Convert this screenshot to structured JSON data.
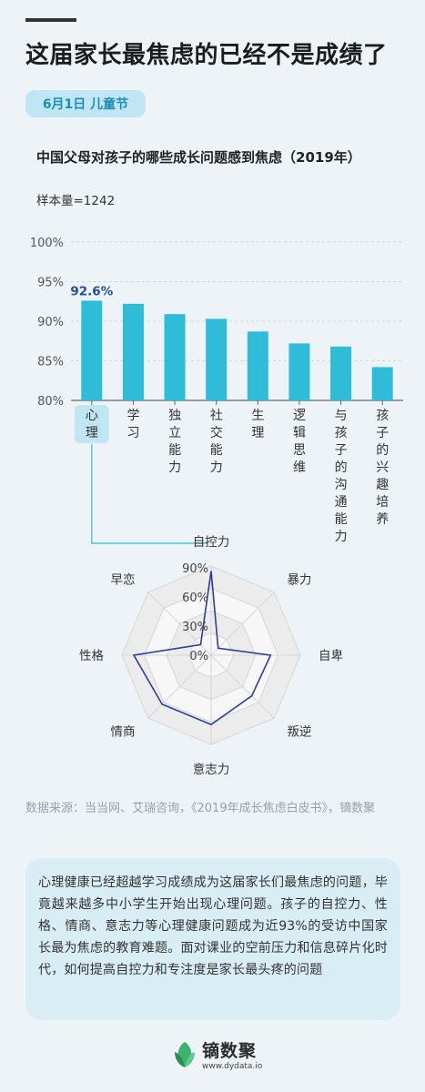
{
  "header": {
    "title": "这届家长最焦虑的已经不是成绩了",
    "date_badge": "6月1日 儿童节"
  },
  "chart_data": [
    {
      "type": "bar",
      "title": "中国父母对孩子的哪些成长问题感到焦虑（2019年）",
      "sample": "样本量=1242",
      "categories": [
        "心理",
        "学习",
        "独立能力",
        "社交能力",
        "生理",
        "逻辑思维",
        "与孩子的沟通能力",
        "孩子的兴趣培养"
      ],
      "values": [
        92.6,
        92.2,
        90.9,
        90.3,
        88.7,
        87.2,
        86.8,
        84.2
      ],
      "ylim": [
        80,
        100
      ],
      "yticks": [
        80,
        85,
        90,
        95,
        100
      ],
      "ytick_labels": [
        "80%",
        "85%",
        "90%",
        "95%",
        "100%"
      ],
      "highlight_category": "心理",
      "highlight_label": "92.6%",
      "bar_color": "#2fbcd8",
      "highlight_color": "#1f4fa3"
    },
    {
      "type": "radar",
      "axes": [
        "自控力",
        "暴力",
        "自卑",
        "叛逆",
        "意志力",
        "情商",
        "性格",
        "早恋"
      ],
      "values": [
        85,
        10,
        60,
        58,
        70,
        70,
        78,
        15
      ],
      "range": [
        0,
        90
      ],
      "ring_labels": [
        "0%",
        "30%",
        "60%",
        "90%"
      ],
      "line_color": "#2a3f9a"
    }
  ],
  "source": "数据来源：当当网、艾瑞咨询，《2019年成长焦虑白皮书》，镝数聚",
  "summary": "心理健康已经超越学习成绩成为这届家长们最焦虑的问题，毕竟越来越多中小学生开始出现心理问题。孩子的自控力、性格、情商、意志力等心理健康问题成为近93%的受访中国家长最为焦虑的教育难题。面对课业的空前压力和信息碎片化时代，如何提高自控力和专注度是家长最头疼的问题",
  "footer": {
    "brand": "镝数聚",
    "url": "www.dydata.io"
  }
}
